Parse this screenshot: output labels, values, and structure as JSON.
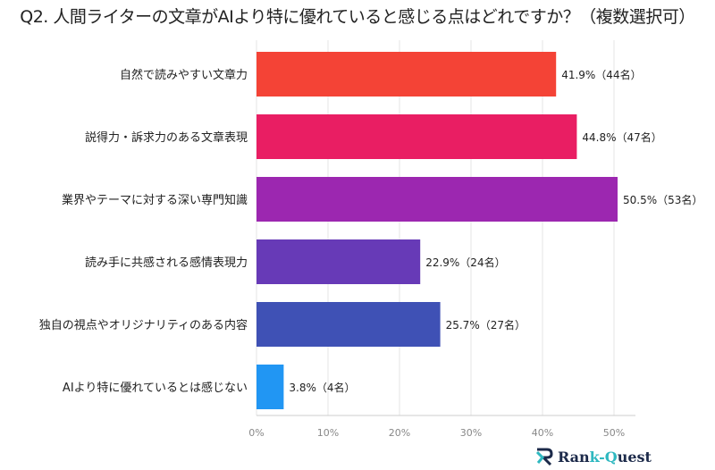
{
  "chart_data": {
    "type": "bar",
    "orientation": "horizontal",
    "title": "Q2. 人間ライターの文章がAIより特に優れていると感じる点はどれですか？（複数選択可）",
    "categories": [
      "自然で読みやすい文章力",
      "説得力・訴求力のある文章表現",
      "業界やテーマに対する深い専門知識",
      "読み手に共感される感情表現力",
      "独自の視点やオリジナリティのある内容",
      "AIより特に優れているとは感じない"
    ],
    "values": [
      41.9,
      44.8,
      50.5,
      22.9,
      25.7,
      3.8
    ],
    "data_labels": [
      "41.9%（44名）",
      "44.8%（47名）",
      "50.5%（53名）",
      "22.9%（24名）",
      "25.7%（27名）",
      "3.8%（4名）"
    ],
    "colors": [
      "#F44336",
      "#E91E63",
      "#9C27B0",
      "#673AB7",
      "#3F51B5",
      "#2196F3"
    ],
    "xlim": [
      0,
      53
    ],
    "xticks": [
      "0%",
      "10%",
      "20%",
      "30%",
      "40%",
      "50%"
    ],
    "grid": true,
    "legend": "none"
  },
  "logo": {
    "part1": "Ran",
    "part2": "k-",
    "part3": "Q",
    "part4": "uest"
  }
}
